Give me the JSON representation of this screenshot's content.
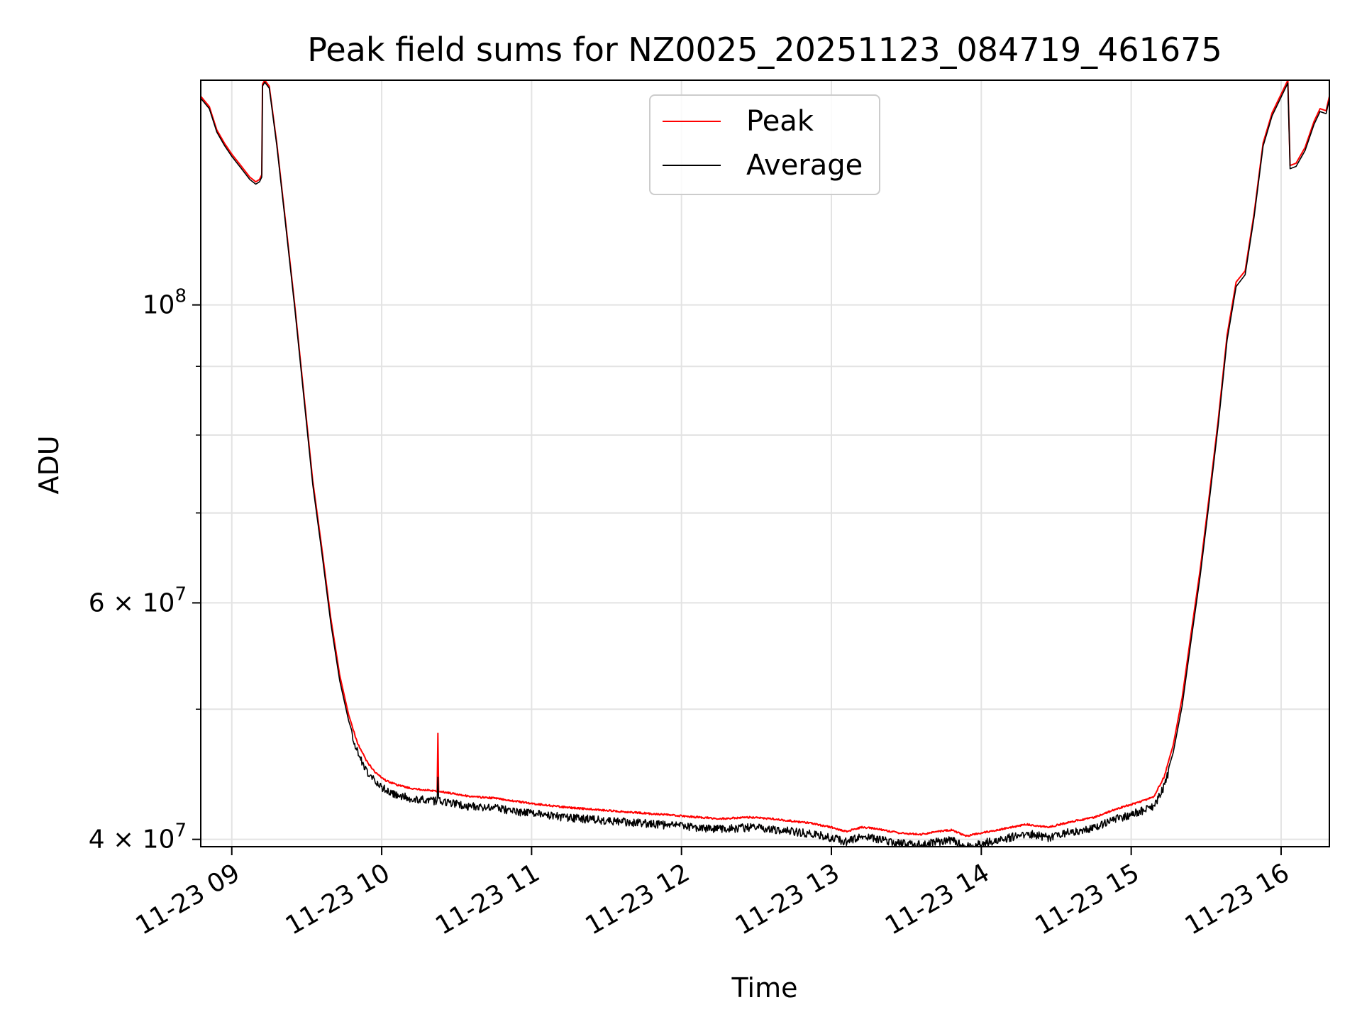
{
  "chart_data": {
    "type": "line",
    "title": "Peak field sums for NZ0025_20251123_084719_461675",
    "xlabel": "Time",
    "ylabel": "ADU",
    "yscale": "log",
    "ylim": [
      39500000,
      147000000
    ],
    "xlim_hours": [
      8.793,
      16.322
    ],
    "x_ticks": [
      {
        "label": "11-23 09",
        "hour": 9
      },
      {
        "label": "11-23 10",
        "hour": 10
      },
      {
        "label": "11-23 11",
        "hour": 11
      },
      {
        "label": "11-23 12",
        "hour": 12
      },
      {
        "label": "11-23 13",
        "hour": 13
      },
      {
        "label": "11-23 14",
        "hour": 14
      },
      {
        "label": "11-23 15",
        "hour": 15
      },
      {
        "label": "11-23 16",
        "hour": 16
      }
    ],
    "y_major_ticks": [
      {
        "value": 100000000,
        "mantissa": "",
        "base": "10",
        "exp": "8"
      },
      {
        "value": 60000000,
        "mantissa": "6 × ",
        "base": "10",
        "exp": "7"
      },
      {
        "value": 40000000,
        "mantissa": "4 × ",
        "base": "10",
        "exp": "7"
      }
    ],
    "y_minor_ticks": [
      50000000,
      70000000,
      80000000,
      90000000
    ],
    "grid": true,
    "legend_position": "upper-center",
    "series": [
      {
        "name": "Peak",
        "color": "#ff0000",
        "points": [
          [
            8.793,
            143000000
          ],
          [
            8.85,
            140500000
          ],
          [
            8.9,
            135000000
          ],
          [
            8.95,
            132000000
          ],
          [
            9.0,
            129500000
          ],
          [
            9.06,
            127000000
          ],
          [
            9.12,
            124500000
          ],
          [
            9.16,
            123500000
          ],
          [
            9.185,
            124000000
          ],
          [
            9.2,
            125000000
          ],
          [
            9.205,
            146000000
          ],
          [
            9.22,
            147000000
          ],
          [
            9.25,
            145500000
          ],
          [
            9.3,
            132000000
          ],
          [
            9.36,
            115000000
          ],
          [
            9.42,
            100000000
          ],
          [
            9.48,
            86000000
          ],
          [
            9.54,
            74000000
          ],
          [
            9.6,
            66000000
          ],
          [
            9.66,
            58500000
          ],
          [
            9.72,
            53000000
          ],
          [
            9.78,
            49500000
          ],
          [
            9.84,
            47200000
          ],
          [
            9.9,
            45800000
          ],
          [
            9.96,
            44900000
          ],
          [
            10.03,
            44300000
          ],
          [
            10.1,
            44000000
          ],
          [
            10.2,
            43700000
          ],
          [
            10.3,
            43600000
          ],
          [
            10.37,
            43500000
          ],
          [
            10.375,
            48000000
          ],
          [
            10.38,
            43500000
          ],
          [
            10.5,
            43300000
          ],
          [
            10.6,
            43100000
          ],
          [
            10.75,
            43000000
          ],
          [
            11.0,
            42600000
          ],
          [
            11.25,
            42300000
          ],
          [
            11.5,
            42100000
          ],
          [
            11.75,
            41900000
          ],
          [
            12.0,
            41700000
          ],
          [
            12.25,
            41500000
          ],
          [
            12.45,
            41600000
          ],
          [
            12.6,
            41500000
          ],
          [
            12.85,
            41200000
          ],
          [
            13.0,
            40900000
          ],
          [
            13.1,
            40600000
          ],
          [
            13.2,
            40900000
          ],
          [
            13.3,
            40800000
          ],
          [
            13.45,
            40500000
          ],
          [
            13.6,
            40400000
          ],
          [
            13.7,
            40600000
          ],
          [
            13.8,
            40700000
          ],
          [
            13.9,
            40300000
          ],
          [
            14.0,
            40500000
          ],
          [
            14.15,
            40800000
          ],
          [
            14.3,
            41100000
          ],
          [
            14.45,
            40900000
          ],
          [
            14.6,
            41300000
          ],
          [
            14.75,
            41600000
          ],
          [
            14.9,
            42200000
          ],
          [
            15.05,
            42700000
          ],
          [
            15.15,
            43100000
          ],
          [
            15.22,
            44600000
          ],
          [
            15.28,
            47000000
          ],
          [
            15.34,
            51000000
          ],
          [
            15.4,
            57000000
          ],
          [
            15.46,
            63500000
          ],
          [
            15.52,
            72000000
          ],
          [
            15.58,
            82000000
          ],
          [
            15.64,
            95000000
          ],
          [
            15.7,
            104000000
          ],
          [
            15.76,
            106000000
          ],
          [
            15.82,
            117000000
          ],
          [
            15.88,
            132000000
          ],
          [
            15.94,
            139000000
          ],
          [
            16.0,
            143500000
          ],
          [
            16.045,
            147000000
          ],
          [
            16.06,
            127000000
          ],
          [
            16.1,
            127500000
          ],
          [
            16.16,
            131000000
          ],
          [
            16.22,
            137000000
          ],
          [
            16.26,
            140000000
          ],
          [
            16.3,
            139500000
          ],
          [
            16.322,
            143000000
          ]
        ]
      },
      {
        "name": "Average",
        "color": "#000000",
        "points": [
          [
            8.793,
            142500000
          ],
          [
            8.85,
            140000000
          ],
          [
            8.9,
            134500000
          ],
          [
            8.95,
            131500000
          ],
          [
            9.0,
            129000000
          ],
          [
            9.06,
            126500000
          ],
          [
            9.12,
            124000000
          ],
          [
            9.16,
            123000000
          ],
          [
            9.185,
            123500000
          ],
          [
            9.2,
            124500000
          ],
          [
            9.205,
            145500000
          ],
          [
            9.22,
            146500000
          ],
          [
            9.25,
            145000000
          ],
          [
            9.3,
            131500000
          ],
          [
            9.36,
            114500000
          ],
          [
            9.42,
            99500000
          ],
          [
            9.48,
            85500000
          ],
          [
            9.54,
            73500000
          ],
          [
            9.6,
            65500000
          ],
          [
            9.66,
            58000000
          ],
          [
            9.72,
            52500000
          ],
          [
            9.78,
            49000000
          ],
          [
            9.84,
            46700000
          ],
          [
            9.9,
            45300000
          ],
          [
            9.96,
            44400000
          ],
          [
            10.03,
            43800000
          ],
          [
            10.1,
            43500000
          ],
          [
            10.2,
            43200000
          ],
          [
            10.3,
            43100000
          ],
          [
            10.37,
            43000000
          ],
          [
            10.375,
            44500000
          ],
          [
            10.38,
            43000000
          ],
          [
            10.5,
            42800000
          ],
          [
            10.6,
            42600000
          ],
          [
            10.75,
            42500000
          ],
          [
            11.0,
            42100000
          ],
          [
            11.25,
            41800000
          ],
          [
            11.5,
            41600000
          ],
          [
            11.75,
            41400000
          ],
          [
            12.0,
            41200000
          ],
          [
            12.25,
            41000000
          ],
          [
            12.45,
            41100000
          ],
          [
            12.6,
            41000000
          ],
          [
            12.85,
            40700000
          ],
          [
            13.0,
            40400000
          ],
          [
            13.1,
            40100000
          ],
          [
            13.2,
            40500000
          ],
          [
            13.3,
            40300000
          ],
          [
            13.45,
            40000000
          ],
          [
            13.6,
            39900000
          ],
          [
            13.7,
            40100000
          ],
          [
            13.8,
            40200000
          ],
          [
            13.9,
            39800000
          ],
          [
            14.0,
            40000000
          ],
          [
            14.15,
            40300000
          ],
          [
            14.3,
            40700000
          ],
          [
            14.45,
            40400000
          ],
          [
            14.6,
            40800000
          ],
          [
            14.75,
            41100000
          ],
          [
            14.9,
            41700000
          ],
          [
            15.05,
            42200000
          ],
          [
            15.15,
            42600000
          ],
          [
            15.22,
            44100000
          ],
          [
            15.28,
            46400000
          ],
          [
            15.34,
            50300000
          ],
          [
            15.4,
            56300000
          ],
          [
            15.46,
            62800000
          ],
          [
            15.52,
            71300000
          ],
          [
            15.58,
            81300000
          ],
          [
            15.64,
            94200000
          ],
          [
            15.7,
            103200000
          ],
          [
            15.76,
            105300000
          ],
          [
            15.82,
            116300000
          ],
          [
            15.88,
            131300000
          ],
          [
            15.94,
            138300000
          ],
          [
            16.0,
            142800000
          ],
          [
            16.045,
            146300000
          ],
          [
            16.06,
            126300000
          ],
          [
            16.1,
            126800000
          ],
          [
            16.16,
            130300000
          ],
          [
            16.22,
            136300000
          ],
          [
            16.26,
            139300000
          ],
          [
            16.3,
            138800000
          ],
          [
            16.322,
            142300000
          ]
        ]
      }
    ]
  }
}
